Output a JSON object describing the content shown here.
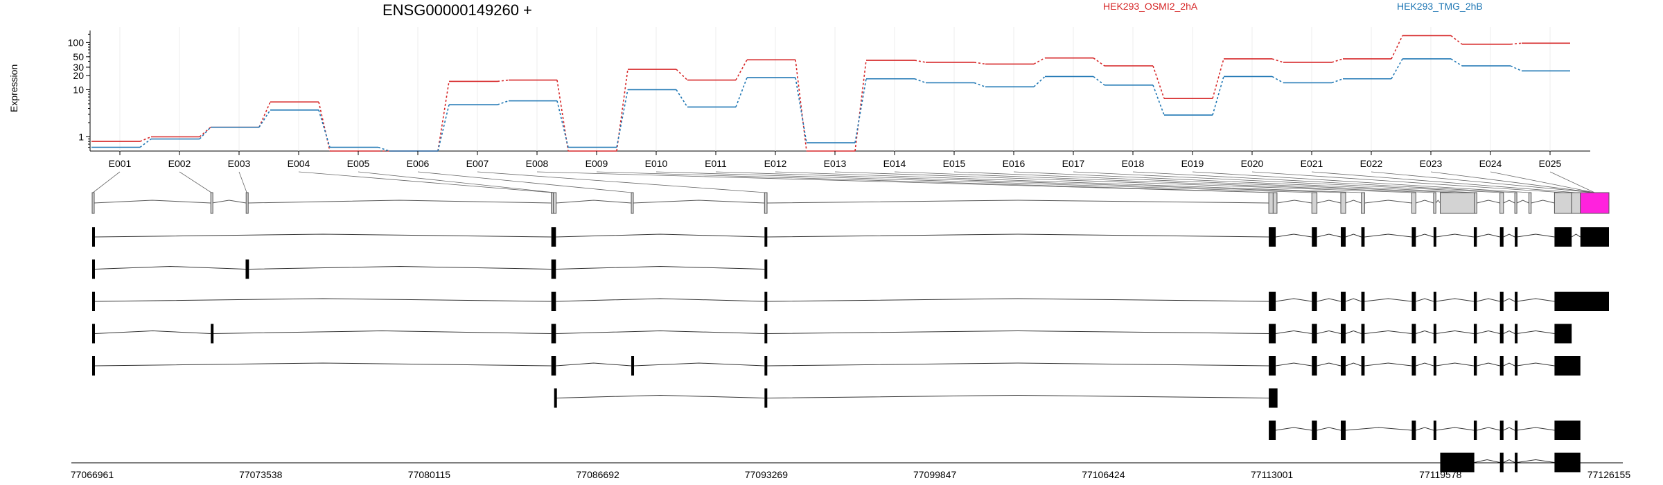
{
  "title": "ENSG00000149260 +",
  "chart_data": {
    "type": "line",
    "title": "ENSG00000149260 +",
    "ylabel": "Expression",
    "yscale": "log",
    "ylim": [
      0.5,
      180
    ],
    "yticks": [
      "1",
      "10",
      "20",
      "30",
      "50",
      "100"
    ],
    "categories": [
      "E001",
      "E002",
      "E003",
      "E004",
      "E005",
      "E006",
      "E007",
      "E008",
      "E009",
      "E010",
      "E011",
      "E012",
      "E013",
      "E014",
      "E015",
      "E016",
      "E017",
      "E018",
      "E019",
      "E020",
      "E021",
      "E022",
      "E023",
      "E024",
      "E025"
    ],
    "series": [
      {
        "name": "HEK293_OSMI2_2hA",
        "color": "#d62728",
        "values": [
          0.8,
          1.0,
          1.6,
          5.5,
          0.5,
          0.5,
          15,
          16,
          0.5,
          27,
          16,
          43,
          0.5,
          42,
          38,
          35,
          47,
          32,
          6.5,
          45,
          38,
          45,
          140,
          92,
          97
        ]
      },
      {
        "name": "HEK293_TMG_2hB",
        "color": "#1f77b4",
        "values": [
          0.6,
          0.9,
          1.6,
          3.7,
          0.6,
          0.5,
          4.8,
          5.8,
          0.6,
          10,
          4.3,
          18,
          0.75,
          17,
          14,
          11.5,
          19,
          12.5,
          2.9,
          19,
          14,
          17,
          45,
          32,
          25
        ]
      }
    ],
    "genome_axis": {
      "ticks": [
        "77066961",
        "77073538",
        "77080115",
        "77086692",
        "77093269",
        "77099847",
        "77106424",
        "77113001",
        "77119578",
        "77126155"
      ],
      "start": 77066961,
      "end": 77126155
    },
    "gene_model": {
      "exons": [
        {
          "start": 77066961,
          "end": 77067021
        },
        {
          "start": 77071590,
          "end": 77071640
        },
        {
          "start": 77072970,
          "end": 77073020
        },
        {
          "start": 77084880,
          "end": 77084960
        },
        {
          "start": 77084960,
          "end": 77085070
        },
        {
          "start": 77088000,
          "end": 77088070
        },
        {
          "start": 77093200,
          "end": 77093300
        },
        {
          "start": 77112880,
          "end": 77113050
        },
        {
          "start": 77113050,
          "end": 77113200
        },
        {
          "start": 77114560,
          "end": 77114760
        },
        {
          "start": 77115690,
          "end": 77115880
        },
        {
          "start": 77116490,
          "end": 77116620
        },
        {
          "start": 77118460,
          "end": 77118620
        },
        {
          "start": 77119310,
          "end": 77119400
        },
        {
          "start": 77119570,
          "end": 77120900
        },
        {
          "start": 77120900,
          "end": 77121000
        },
        {
          "start": 77121900,
          "end": 77122040
        },
        {
          "start": 77122480,
          "end": 77122560
        },
        {
          "start": 77123030,
          "end": 77123120
        },
        {
          "start": 77124030,
          "end": 77124700
        },
        {
          "start": 77124700,
          "end": 77125040
        },
        {
          "start": 77125040,
          "end": 77126155
        }
      ],
      "exon_colors": {
        "default": "#d3d3d3",
        "highlight": "#ff22dd",
        "highlight_index": 21
      }
    },
    "transcripts": [
      [
        [
          77066961,
          77067061
        ],
        [
          77084880,
          77085060
        ],
        [
          77093200,
          77093300
        ],
        [
          77112880,
          77113150
        ],
        [
          77114560,
          77114760
        ],
        [
          77115690,
          77115880
        ],
        [
          77116490,
          77116620
        ],
        [
          77118460,
          77118620
        ],
        [
          77119310,
          77119400
        ],
        [
          77120880,
          77121000
        ],
        [
          77121900,
          77122040
        ],
        [
          77122480,
          77122560
        ],
        [
          77124030,
          77124700
        ],
        [
          77125040,
          77126155
        ]
      ],
      [
        [
          77066961,
          77067061
        ],
        [
          77072950,
          77073080
        ],
        [
          77084880,
          77085060
        ],
        [
          77093200,
          77093300
        ]
      ],
      [
        [
          77066961,
          77067061
        ],
        [
          77084880,
          77085060
        ],
        [
          77093200,
          77093300
        ],
        [
          77112880,
          77113150
        ],
        [
          77114560,
          77114760
        ],
        [
          77115690,
          77115880
        ],
        [
          77116490,
          77116620
        ],
        [
          77118460,
          77118620
        ],
        [
          77119310,
          77119400
        ],
        [
          77120880,
          77121000
        ],
        [
          77121900,
          77122040
        ],
        [
          77122480,
          77122560
        ],
        [
          77124030,
          77126155
        ]
      ],
      [
        [
          77066961,
          77067061
        ],
        [
          77071590,
          77071660
        ],
        [
          77084880,
          77085060
        ],
        [
          77093200,
          77093300
        ],
        [
          77112880,
          77113150
        ],
        [
          77114560,
          77114760
        ],
        [
          77115690,
          77115880
        ],
        [
          77116490,
          77116620
        ],
        [
          77118460,
          77118620
        ],
        [
          77119310,
          77119400
        ],
        [
          77120880,
          77121000
        ],
        [
          77121900,
          77122040
        ],
        [
          77122480,
          77122560
        ],
        [
          77124030,
          77124700
        ]
      ],
      [
        [
          77066961,
          77067061
        ],
        [
          77084880,
          77085060
        ],
        [
          77088000,
          77088090
        ],
        [
          77093200,
          77093300
        ],
        [
          77112880,
          77113150
        ],
        [
          77114560,
          77114760
        ],
        [
          77115690,
          77115880
        ],
        [
          77116490,
          77116620
        ],
        [
          77118460,
          77118620
        ],
        [
          77119310,
          77119400
        ],
        [
          77120880,
          77121000
        ],
        [
          77121900,
          77122040
        ],
        [
          77122480,
          77122560
        ],
        [
          77124030,
          77125040
        ]
      ],
      [
        [
          77084990,
          77085070
        ],
        [
          77093200,
          77093300
        ],
        [
          77112880,
          77113220
        ]
      ],
      [
        [
          77112880,
          77113150
        ],
        [
          77114560,
          77114760
        ],
        [
          77115690,
          77115880
        ],
        [
          77118460,
          77118620
        ],
        [
          77119310,
          77119400
        ],
        [
          77120880,
          77121000
        ],
        [
          77121900,
          77122040
        ],
        [
          77122480,
          77122560
        ],
        [
          77124030,
          77125040
        ]
      ],
      [
        [
          77119570,
          77120900
        ],
        [
          77121900,
          77122040
        ],
        [
          77122480,
          77122560
        ],
        [
          77124030,
          77125040
        ]
      ]
    ]
  }
}
